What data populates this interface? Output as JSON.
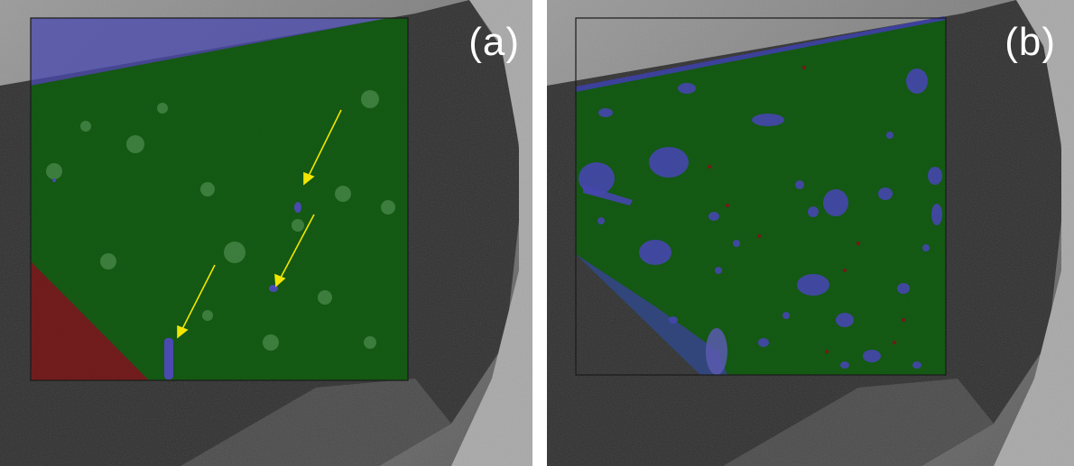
{
  "panels": [
    {
      "label": "(a)"
    },
    {
      "label": "(b)"
    }
  ],
  "colors": {
    "background_light": "#b5b5b5",
    "background_dark": "#2b2b2b",
    "overlay_green": "#0b5a0b",
    "overlay_blue": "#3f3fa8",
    "overlay_red": "#7a1515",
    "arrow_yellow": "#f2e600",
    "frame": "#1a1a1a"
  }
}
